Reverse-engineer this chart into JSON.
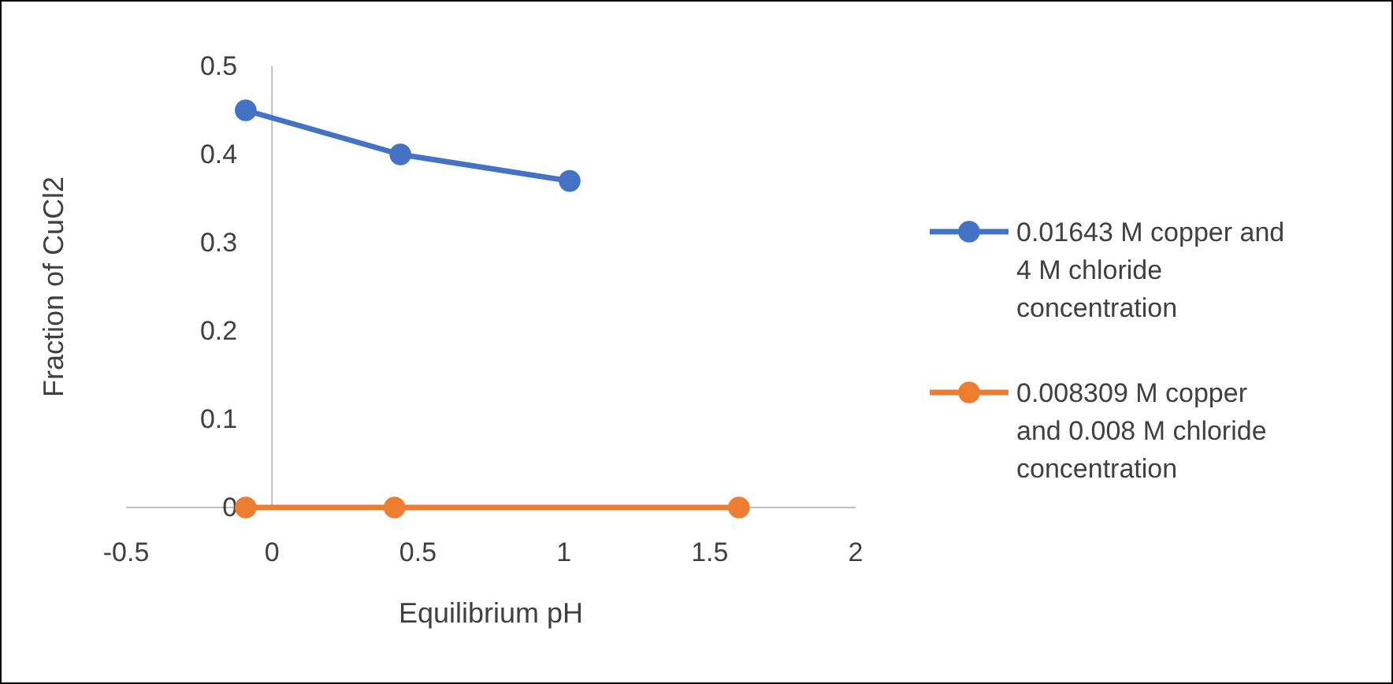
{
  "chart_data": {
    "type": "line",
    "xlabel": "Equilibrium pH",
    "ylabel": "Fraction of CuCl2",
    "xlim": [
      -0.5,
      2
    ],
    "xticks": [
      -0.5,
      0,
      0.5,
      1,
      1.5,
      2
    ],
    "ylim": [
      0,
      0.5
    ],
    "yticks": [
      0,
      0.1,
      0.2,
      0.3,
      0.4,
      0.5
    ],
    "grid": false,
    "legend": "right",
    "marker": "circle",
    "line_style": "solid",
    "series": [
      {
        "name": "0.01643 M copper and 4 M chloride concentration",
        "color": "#4472c4",
        "x": [
          -0.09,
          0.44,
          1.02
        ],
        "values": [
          0.45,
          0.4,
          0.37
        ]
      },
      {
        "name": "0.008309 M copper and 0.008 M chloride concentration",
        "color": "#ed7d31",
        "x": [
          -0.09,
          0.42,
          1.6
        ],
        "values": [
          0,
          0,
          0
        ]
      }
    ]
  }
}
